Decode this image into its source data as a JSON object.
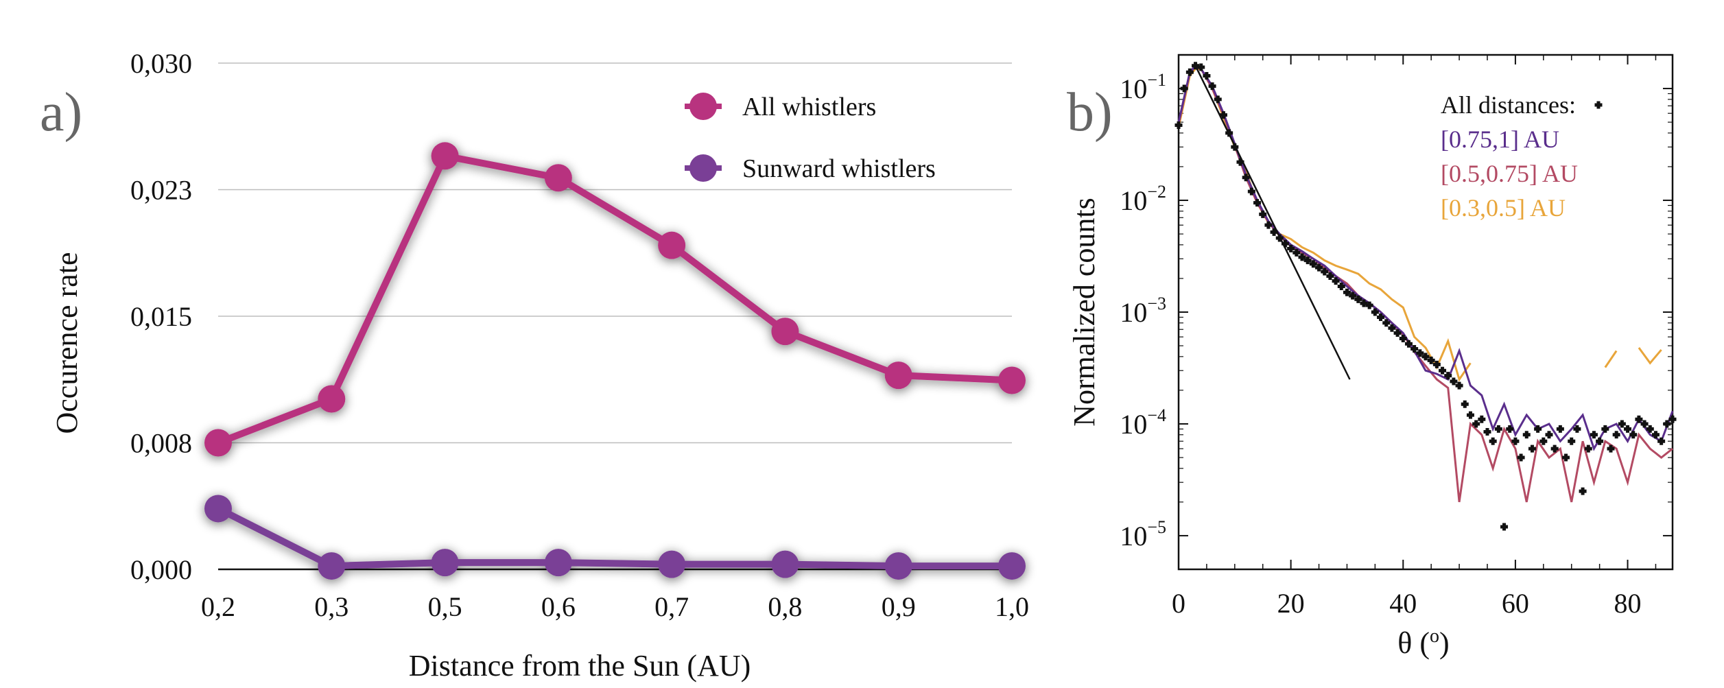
{
  "chart_data": [
    {
      "type": "line",
      "panel_label": "a)",
      "xlabel": "Distance from the Sun (AU)",
      "ylabel": "Occurence rate",
      "categories": [
        "0,2",
        "0,3",
        "0,5",
        "0,6",
        "0,7",
        "0,8",
        "0,9",
        "1,0"
      ],
      "y_ticks": [
        "0,000",
        "0,008",
        "0,015",
        "0,023",
        "0,030"
      ],
      "ylim": [
        0,
        0.03
      ],
      "grid": "horizontal",
      "legend_position": "top-right",
      "series": [
        {
          "name": "All whistlers",
          "color": "#B8337F",
          "values": [
            0.0075,
            0.0101,
            0.0245,
            0.0232,
            0.0192,
            0.0141,
            0.0115,
            0.0112
          ]
        },
        {
          "name": "Sunward whistlers",
          "color": "#7A3F96",
          "values": [
            0.0036,
            0.0002,
            0.0004,
            0.0004,
            0.0003,
            0.0003,
            0.0002,
            0.0002
          ]
        }
      ]
    },
    {
      "type": "line",
      "panel_label": "b)",
      "xlabel": "θ (",
      "xlabel_sup": "o",
      "xlabel_end": ")",
      "ylabel": "Normalized counts",
      "xlim": [
        0,
        88
      ],
      "ylim": [
        5e-06,
        0.2
      ],
      "y_scale": "log",
      "x_ticks": [
        "0",
        "20",
        "40",
        "60",
        "80"
      ],
      "y_ticks": [
        {
          "base": "10",
          "exp": "−5"
        },
        {
          "base": "10",
          "exp": "−4"
        },
        {
          "base": "10",
          "exp": "−3"
        },
        {
          "base": "10",
          "exp": "−2"
        },
        {
          "base": "10",
          "exp": "−1"
        }
      ],
      "legend_position": "top-right",
      "series": [
        {
          "name": "All distances:",
          "color": "#111111",
          "style": "markers",
          "x": [
            0,
            1,
            2,
            3,
            4,
            5,
            6,
            7,
            8,
            9,
            10,
            11,
            12,
            13,
            14,
            15,
            16,
            17,
            18,
            19,
            20,
            21,
            22,
            23,
            24,
            25,
            26,
            27,
            28,
            29,
            30,
            31,
            32,
            33,
            34,
            35,
            36,
            37,
            38,
            39,
            40,
            41,
            42,
            43,
            44,
            45,
            46,
            47,
            48,
            49,
            50,
            51,
            52,
            53,
            54,
            55,
            56,
            57,
            58,
            59,
            60,
            61,
            62,
            63,
            64,
            65,
            66,
            67,
            68,
            69,
            70,
            71,
            72,
            73,
            74,
            75,
            76,
            77,
            78,
            79,
            80,
            81,
            82,
            83,
            84,
            85,
            86,
            87,
            88
          ],
          "y": [
            0.047,
            0.1,
            0.14,
            0.16,
            0.155,
            0.13,
            0.105,
            0.08,
            0.058,
            0.04,
            0.03,
            0.022,
            0.016,
            0.012,
            0.0095,
            0.0075,
            0.006,
            0.0052,
            0.0046,
            0.0041,
            0.0037,
            0.0034,
            0.0031,
            0.0029,
            0.0027,
            0.0025,
            0.0023,
            0.0021,
            0.0019,
            0.0017,
            0.0015,
            0.0014,
            0.0013,
            0.0012,
            0.00115,
            0.001,
            0.0009,
            0.0008,
            0.00072,
            0.00065,
            0.00058,
            0.00052,
            0.00047,
            0.00043,
            0.0004,
            0.00037,
            0.00034,
            0.0003,
            0.00027,
            0.00024,
            0.00022,
            0.00015,
            0.00012,
            0.0001,
            0.00011,
            8.5e-05,
            7e-05,
            9e-05,
            1.2e-05,
            9e-05,
            7e-05,
            5e-05,
            8e-05,
            6e-05,
            9e-05,
            7e-05,
            8e-05,
            6e-05,
            9e-05,
            5e-05,
            7e-05,
            9e-05,
            2.5e-05,
            6e-05,
            8e-05,
            7e-05,
            9e-05,
            6e-05,
            8e-05,
            0.0001,
            9e-05,
            8e-05,
            0.00011,
            0.0001,
            9e-05,
            8e-05,
            7e-05,
            0.0001,
            0.00011
          ]
        },
        {
          "name": "[0.75,1] AU",
          "color": "#5A2E8C",
          "style": "line",
          "x": [
            0,
            2,
            3,
            4,
            6,
            8,
            10,
            12,
            14,
            16,
            18,
            20,
            22,
            24,
            26,
            28,
            30,
            32,
            34,
            36,
            38,
            40,
            42,
            44,
            46,
            48,
            50,
            52,
            54,
            56,
            58,
            60,
            62,
            64,
            66,
            68,
            70,
            72,
            74,
            76,
            78,
            80,
            82,
            84,
            86,
            88
          ],
          "y": [
            0.05,
            0.14,
            0.16,
            0.15,
            0.105,
            0.06,
            0.032,
            0.017,
            0.01,
            0.0065,
            0.005,
            0.004,
            0.0035,
            0.003,
            0.0026,
            0.0021,
            0.0017,
            0.0014,
            0.0012,
            0.001,
            0.0008,
            0.00065,
            0.00045,
            0.0003,
            0.00028,
            0.00025,
            0.00045,
            0.00022,
            0.00018,
            9e-05,
            0.00015,
            8e-05,
            0.00012,
            9e-05,
            0.0001,
            7e-05,
            9e-05,
            0.00012,
            6e-05,
            9e-05,
            0.0001,
            7e-05,
            0.00011,
            8e-05,
            7e-05,
            0.00013
          ]
        },
        {
          "name": "[0.5,0.75] AU",
          "color": "#B34A63",
          "style": "line",
          "x": [
            0,
            2,
            3,
            4,
            6,
            8,
            10,
            12,
            14,
            16,
            18,
            20,
            22,
            24,
            26,
            28,
            30,
            32,
            34,
            36,
            38,
            40,
            42,
            44,
            46,
            48,
            50,
            52,
            54,
            56,
            58,
            60,
            62,
            64,
            66,
            68,
            70,
            72,
            74,
            76,
            78,
            80,
            82,
            84,
            86,
            88
          ],
          "y": [
            0.048,
            0.14,
            0.155,
            0.15,
            0.1,
            0.058,
            0.031,
            0.016,
            0.0095,
            0.0064,
            0.0048,
            0.0039,
            0.0034,
            0.003,
            0.0025,
            0.0021,
            0.0018,
            0.0014,
            0.0012,
            0.001,
            0.0008,
            0.00063,
            0.00044,
            0.00033,
            0.00025,
            0.00021,
            2e-05,
            0.0001,
            8e-05,
            4e-05,
            9e-05,
            6e-05,
            2e-05,
            7e-05,
            5e-05,
            6e-05,
            2e-05,
            7e-05,
            3e-05,
            7e-05,
            6e-05,
            3e-05,
            8e-05,
            6e-05,
            5e-05,
            6e-05
          ]
        },
        {
          "name": "[0.3,0.5] AU",
          "color": "#E8A53A",
          "style": "line",
          "x": [
            0,
            2,
            3,
            4,
            6,
            8,
            10,
            12,
            14,
            16,
            18,
            20,
            22,
            24,
            26,
            28,
            30,
            32,
            34,
            36,
            38,
            40,
            42,
            44,
            46,
            48,
            50,
            52,
            54,
            56,
            58,
            60,
            62,
            64,
            66,
            68,
            70,
            72,
            74,
            76,
            78,
            80,
            82,
            84,
            86,
            88
          ],
          "y": [
            0.045,
            0.13,
            0.15,
            0.15,
            0.1,
            0.055,
            0.03,
            0.018,
            0.0095,
            0.0063,
            0.005,
            0.0045,
            0.0038,
            0.0034,
            0.0029,
            0.0026,
            0.0024,
            0.0022,
            0.0018,
            0.0016,
            0.0013,
            0.0011,
            0.0006,
            0.00048,
            0.00032,
            0.00055,
            0.00025,
            0.00035,
            null,
            null,
            null,
            null,
            null,
            null,
            null,
            null,
            null,
            null,
            null,
            0.00032,
            0.00045,
            null,
            0.00048,
            0.00035,
            0.00046,
            null
          ]
        }
      ],
      "fit_line": {
        "color": "#111111",
        "x": [
          3,
          30.5
        ],
        "y": [
          0.16,
          0.00025
        ]
      }
    }
  ]
}
